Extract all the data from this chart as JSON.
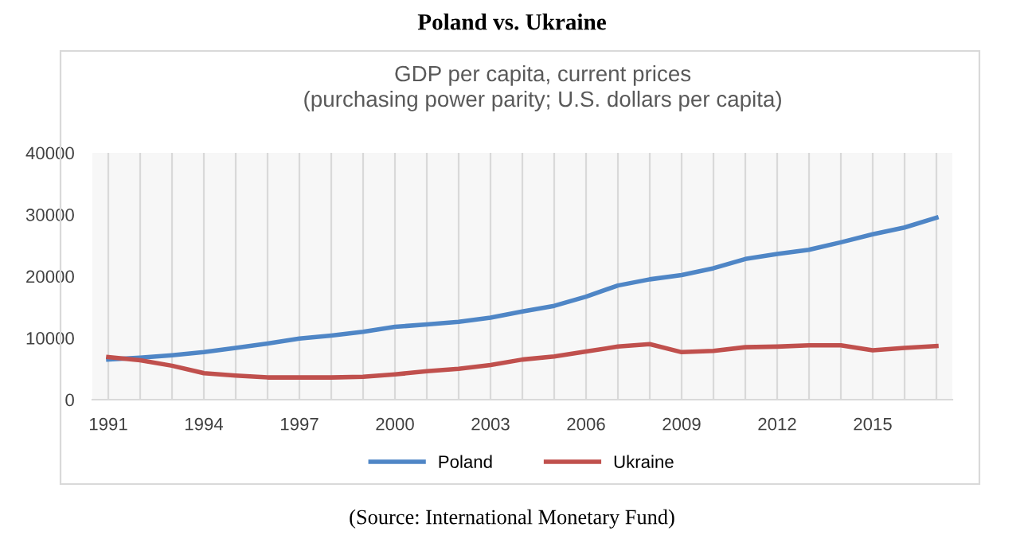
{
  "chart_data": {
    "type": "line",
    "title": "Poland vs. Ukraine",
    "subtitle": "GDP per capita, current prices\n(purchasing power parity; U.S. dollars per capita)",
    "categories": [
      "1991",
      null,
      null,
      "1994",
      null,
      null,
      "1997",
      null,
      null,
      "2000",
      null,
      null,
      "2003",
      null,
      null,
      "2006",
      null,
      null,
      "2009",
      null,
      null,
      "2012",
      null,
      null,
      "2015",
      null,
      null
    ],
    "series": [
      {
        "name": "Poland",
        "color": "#4f86c6",
        "values": [
          6500,
          6800,
          7200,
          7700,
          8400,
          9100,
          9900,
          10400,
          11000,
          11800,
          12200,
          12600,
          13300,
          14300,
          15200,
          16700,
          18500,
          19500,
          20200,
          21300,
          22800,
          23600,
          24300,
          25500,
          26800,
          27900,
          29500
        ]
      },
      {
        "name": "Ukraine",
        "color": "#c0504d",
        "values": [
          6900,
          6400,
          5500,
          4300,
          3900,
          3600,
          3600,
          3600,
          3700,
          4100,
          4600,
          5000,
          5600,
          6500,
          7000,
          7800,
          8600,
          9000,
          7700,
          7900,
          8500,
          8600,
          8800,
          8800,
          8000,
          8400,
          8700
        ]
      }
    ],
    "ylim": [
      0,
      40000
    ],
    "yticks": [
      0,
      10000,
      20000,
      30000,
      40000
    ],
    "grid": "x",
    "legend": "bottom",
    "marker": "none",
    "line_style": "solid",
    "annotations": [
      "(Source: International Monetary Fund)"
    ]
  }
}
